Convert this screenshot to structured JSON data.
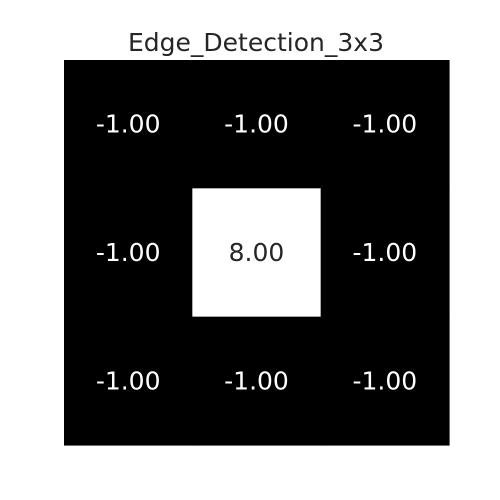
{
  "chart_data": {
    "type": "heatmap",
    "title": "Edge_Detection_3x3",
    "xlabel": "",
    "ylabel": "",
    "rows": 3,
    "cols": 3,
    "values": [
      [
        -1.0,
        -1.0,
        -1.0
      ],
      [
        -1.0,
        8.0,
        -1.0
      ],
      [
        -1.0,
        -1.0,
        -1.0
      ]
    ],
    "cell_labels": [
      [
        "-1.00",
        "-1.00",
        "-1.00"
      ],
      [
        "-1.00",
        "8.00",
        "-1.00"
      ],
      [
        "-1.00",
        "-1.00",
        "-1.00"
      ]
    ],
    "colormap": {
      "min_color": "#000000",
      "max_color": "#ffffff",
      "vmin": -1.0,
      "vmax": 8.0
    },
    "grid": false,
    "colorbar": false
  }
}
